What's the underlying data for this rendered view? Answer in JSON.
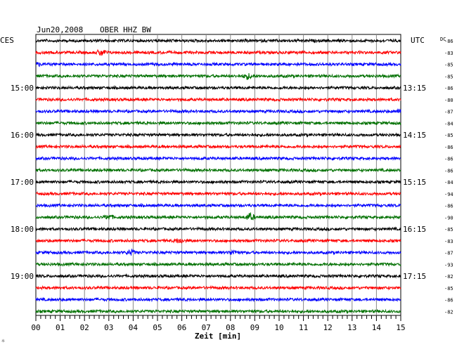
{
  "header": {
    "date": "Jun20,2008",
    "station": "OBER HHZ BW",
    "left_tz": "CES",
    "right_tz": "UTC",
    "dc_label": "DC",
    "footer_mark": "☼"
  },
  "chart_data": {
    "type": "line",
    "title": "Jun20,2008   OBER HHZ BW",
    "xlabel": "Zeit [min]",
    "xlim": [
      0,
      15
    ],
    "x_ticks": [
      "00",
      "01",
      "02",
      "03",
      "04",
      "05",
      "06",
      "07",
      "08",
      "09",
      "10",
      "11",
      "12",
      "13",
      "14",
      "15"
    ],
    "grid": true,
    "trace_colors": [
      "#000000",
      "#ff0000",
      "#0000ff",
      "#007000"
    ],
    "left_hour_labels": [
      {
        "trace": 4,
        "label": "15:00"
      },
      {
        "trace": 8,
        "label": "16:00"
      },
      {
        "trace": 12,
        "label": "17:00"
      },
      {
        "trace": 16,
        "label": "18:00"
      },
      {
        "trace": 20,
        "label": "19:00"
      }
    ],
    "right_hour_labels": [
      {
        "trace": 4,
        "label": "13:15"
      },
      {
        "trace": 8,
        "label": "14:15"
      },
      {
        "trace": 12,
        "label": "15:15"
      },
      {
        "trace": 16,
        "label": "16:15"
      },
      {
        "trace": 20,
        "label": "17:15"
      }
    ],
    "dc_offsets": [
      "-86",
      "-83",
      "-85",
      "-85",
      "-86",
      "-80",
      "-87",
      "-84",
      "-85",
      "-86",
      "-86",
      "-86",
      "-84",
      "-94",
      "-86",
      "-90",
      "-85",
      "-83",
      "-87",
      "-93",
      "-82",
      "-85",
      "-86",
      "-82"
    ],
    "events": [
      {
        "trace": 1,
        "minute": 2.7,
        "amp": 1.4
      },
      {
        "trace": 3,
        "minute": 8.7,
        "amp": 1.2
      },
      {
        "trace": 15,
        "minute": 8.8,
        "amp": 1.6
      },
      {
        "trace": 15,
        "minute": 3.0,
        "amp": 1.0
      },
      {
        "trace": 17,
        "minute": 5.9,
        "amp": 1.0
      },
      {
        "trace": 18,
        "minute": 3.9,
        "amp": 1.1
      },
      {
        "trace": 18,
        "minute": 8.1,
        "amp": 1.0
      },
      {
        "trace": 6,
        "minute": 15.0,
        "amp": 1.0
      },
      {
        "trace": 2,
        "minute": 0.0,
        "amp": 1.0
      }
    ]
  }
}
